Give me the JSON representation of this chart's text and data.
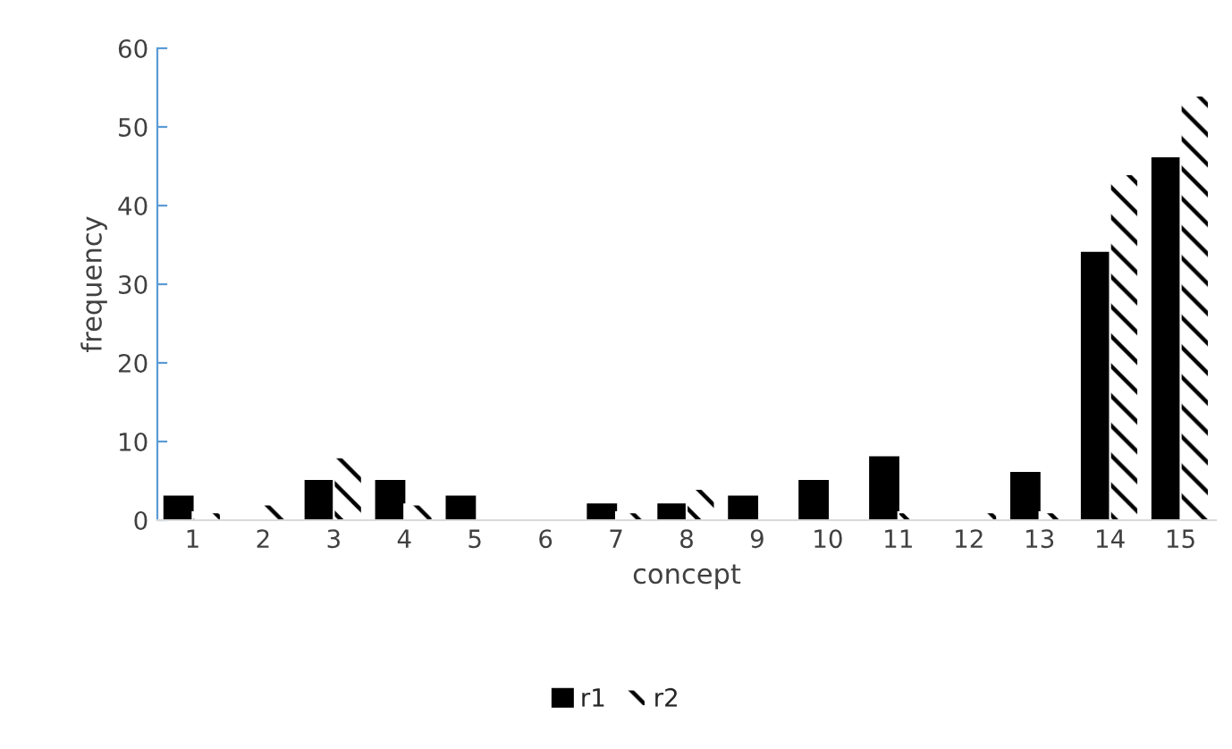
{
  "chart_data": {
    "type": "bar",
    "xlabel": "concept",
    "ylabel": "frequency",
    "categories": [
      "1",
      "2",
      "3",
      "4",
      "5",
      "6",
      "7",
      "8",
      "9",
      "10",
      "11",
      "12",
      "13",
      "14",
      "15"
    ],
    "series": [
      {
        "name": "r1",
        "color": "#000000",
        "values": [
          3,
          0,
          5,
          5,
          3,
          0,
          2,
          2,
          3,
          5,
          8,
          0,
          6,
          34,
          46
        ]
      },
      {
        "name": "r2",
        "color": "#ffffff",
        "values": [
          1,
          2,
          8,
          2,
          0,
          0,
          1,
          4,
          0,
          0,
          1,
          1,
          1,
          44,
          54
        ]
      }
    ],
    "ylim": [
      0,
      60
    ],
    "yticks": [
      0,
      10,
      20,
      30,
      40,
      50,
      60
    ],
    "grid": false,
    "legend": "bottom"
  }
}
